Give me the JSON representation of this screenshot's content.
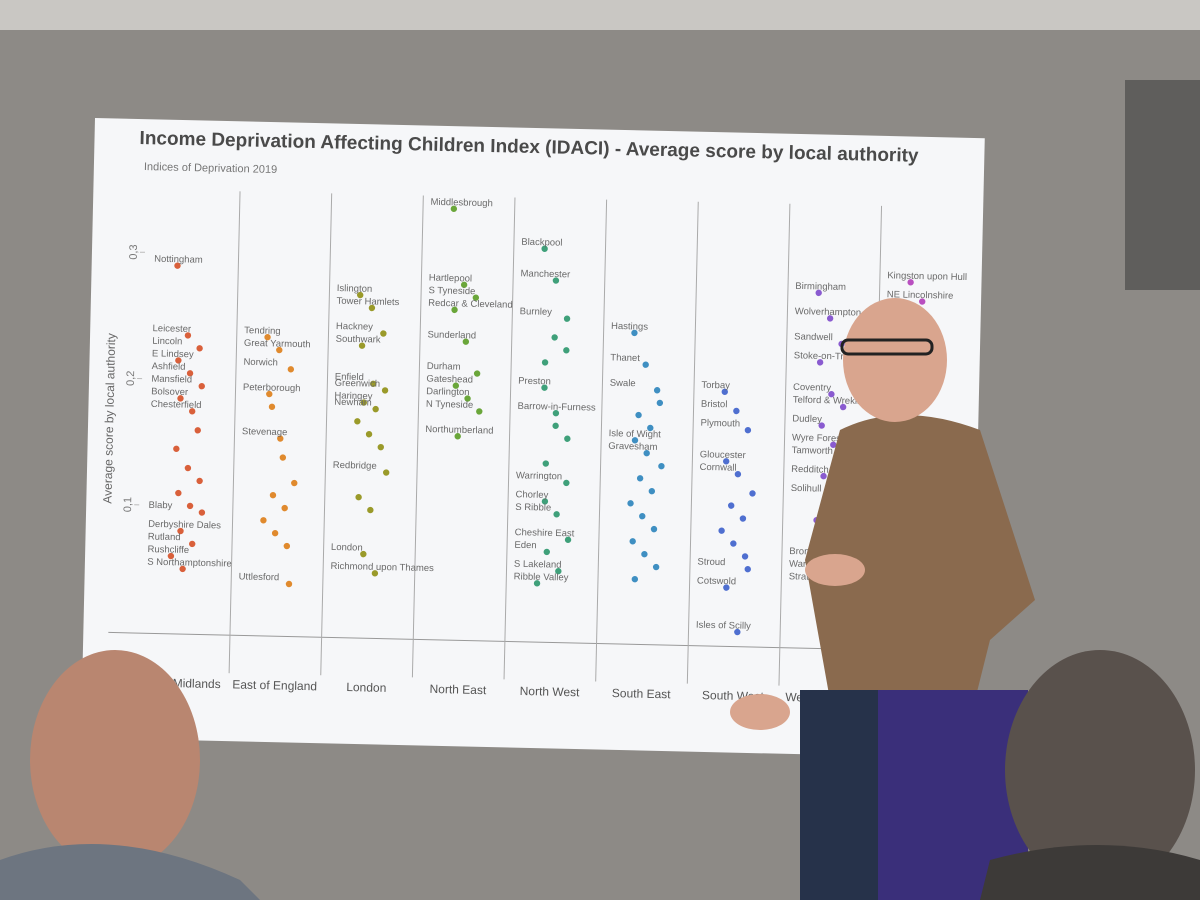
{
  "chart_data": {
    "type": "strip",
    "title": "Income Deprivation Affecting Children Index (IDACI) - Average score by local authority",
    "subtitle": "Indices of Deprivation 2019",
    "y_label": "Average score by local authority",
    "ylim": [
      0,
      0.35
    ],
    "yticks": [
      {
        "value": 0.1,
        "label": "0,1"
      },
      {
        "value": 0.2,
        "label": "0,2"
      },
      {
        "value": 0.3,
        "label": "0,3"
      }
    ],
    "series": [
      {
        "name": "East Midlands",
        "color": "#d9603b",
        "labels": [
          "Nottingham",
          "Leicester",
          "Lincoln",
          "E Lindsey",
          "Ashfield",
          "Mansfield",
          "Bolsover",
          "Chesterfield",
          "Blaby",
          "Derbyshire Dales",
          "Rutland",
          "Rushcliffe",
          "S Northamptonshire",
          null,
          null,
          null,
          null,
          null,
          null
        ],
        "values": [
          0.29,
          0.235,
          0.225,
          0.215,
          0.205,
          0.195,
          0.185,
          0.175,
          0.095,
          0.08,
          0.07,
          0.06,
          0.05,
          0.16,
          0.145,
          0.13,
          0.12,
          0.11,
          0.1
        ]
      },
      {
        "name": "East of England",
        "color": "#e08a2e",
        "labels": [
          "Tendring",
          "Great Yarmouth",
          "Norwich",
          "Peterborough",
          "Stevenage",
          "Uttlesford",
          null,
          null,
          null,
          null,
          null,
          null,
          null,
          null
        ],
        "values": [
          0.235,
          0.225,
          0.21,
          0.19,
          0.155,
          0.04,
          0.18,
          0.14,
          0.12,
          0.11,
          0.1,
          0.09,
          0.08,
          0.07
        ]
      },
      {
        "name": "London",
        "color": "#9a9a2a",
        "labels": [
          "Islington",
          "Tower Hamlets",
          "Hackney",
          "Southwark",
          "Enfield",
          "Greenwich",
          "Haringey",
          "Newham",
          "Redbridge",
          "London",
          "Richmond upon Thames",
          null,
          null,
          null,
          null,
          null
        ],
        "values": [
          0.27,
          0.26,
          0.24,
          0.23,
          0.2,
          0.195,
          0.185,
          0.18,
          0.13,
          0.065,
          0.05,
          0.17,
          0.16,
          0.15,
          0.11,
          0.1
        ]
      },
      {
        "name": "North East",
        "color": "#6aa63a",
        "labels": [
          "Middlesbrough",
          "Hartlepool",
          "S Tyneside",
          "Redcar & Cleveland",
          "Sunderland",
          "Durham",
          "Gateshead",
          "Darlington",
          "N Tyneside",
          "Northumberland"
        ],
        "values": [
          0.34,
          0.28,
          0.27,
          0.26,
          0.235,
          0.21,
          0.2,
          0.19,
          0.18,
          0.16
        ]
      },
      {
        "name": "North West",
        "color": "#3fa07a",
        "labels": [
          "Blackpool",
          "Manchester",
          "Burnley",
          "Preston",
          "Barrow-in-Furness",
          "Warrington",
          "Chorley",
          "S Ribble",
          "Cheshire East",
          "Eden",
          "S Lakeland",
          "Ribble Valley",
          null,
          null,
          null,
          null,
          null,
          null
        ],
        "values": [
          0.31,
          0.285,
          0.255,
          0.2,
          0.18,
          0.125,
          0.11,
          0.1,
          0.08,
          0.07,
          0.055,
          0.045,
          0.24,
          0.23,
          0.22,
          0.17,
          0.16,
          0.14
        ]
      },
      {
        "name": "South East",
        "color": "#3f8fc2",
        "labels": [
          "Hastings",
          "Thanet",
          "Swale",
          "Isle of Wight",
          "Gravesham",
          null,
          null,
          null,
          null,
          null,
          null,
          null,
          null,
          null,
          null,
          null,
          null,
          null
        ],
        "values": [
          0.245,
          0.22,
          0.2,
          0.16,
          0.15,
          0.19,
          0.18,
          0.17,
          0.14,
          0.13,
          0.12,
          0.11,
          0.1,
          0.09,
          0.08,
          0.07,
          0.06,
          0.05
        ]
      },
      {
        "name": "South West",
        "color": "#4f6fd0",
        "labels": [
          "Torbay",
          "Bristol",
          "Plymouth",
          "Gloucester",
          "Cornwall",
          "Stroud",
          "Cotswold",
          "Isles of Scilly",
          null,
          null,
          null,
          null,
          null,
          null
        ],
        "values": [
          0.2,
          0.185,
          0.17,
          0.145,
          0.135,
          0.06,
          0.045,
          0.01,
          0.12,
          0.11,
          0.1,
          0.09,
          0.08,
          0.07
        ]
      },
      {
        "name": "West Midlands",
        "color": "#8a5bd0",
        "labels": [
          "Birmingham",
          "Wolverhampton",
          "Sandwell",
          "Stoke-on-Trent",
          "Coventry",
          "Telford & Wrekin",
          "Dudley",
          "Wyre Forest",
          "Tamworth",
          "Redditch",
          "Solihull",
          "Bromsgrove",
          "Warwick",
          "Stratford-on-Avon",
          null,
          null
        ],
        "values": [
          0.28,
          0.26,
          0.24,
          0.225,
          0.2,
          0.19,
          0.175,
          0.16,
          0.15,
          0.135,
          0.12,
          0.07,
          0.06,
          0.05,
          0.1,
          0.09
        ]
      },
      {
        "name": null,
        "color": "#b94fc0",
        "labels": [
          "Kingston upon Hull",
          "NE Lincolnshire"
        ],
        "values": [
          0.29,
          0.275
        ]
      }
    ]
  }
}
